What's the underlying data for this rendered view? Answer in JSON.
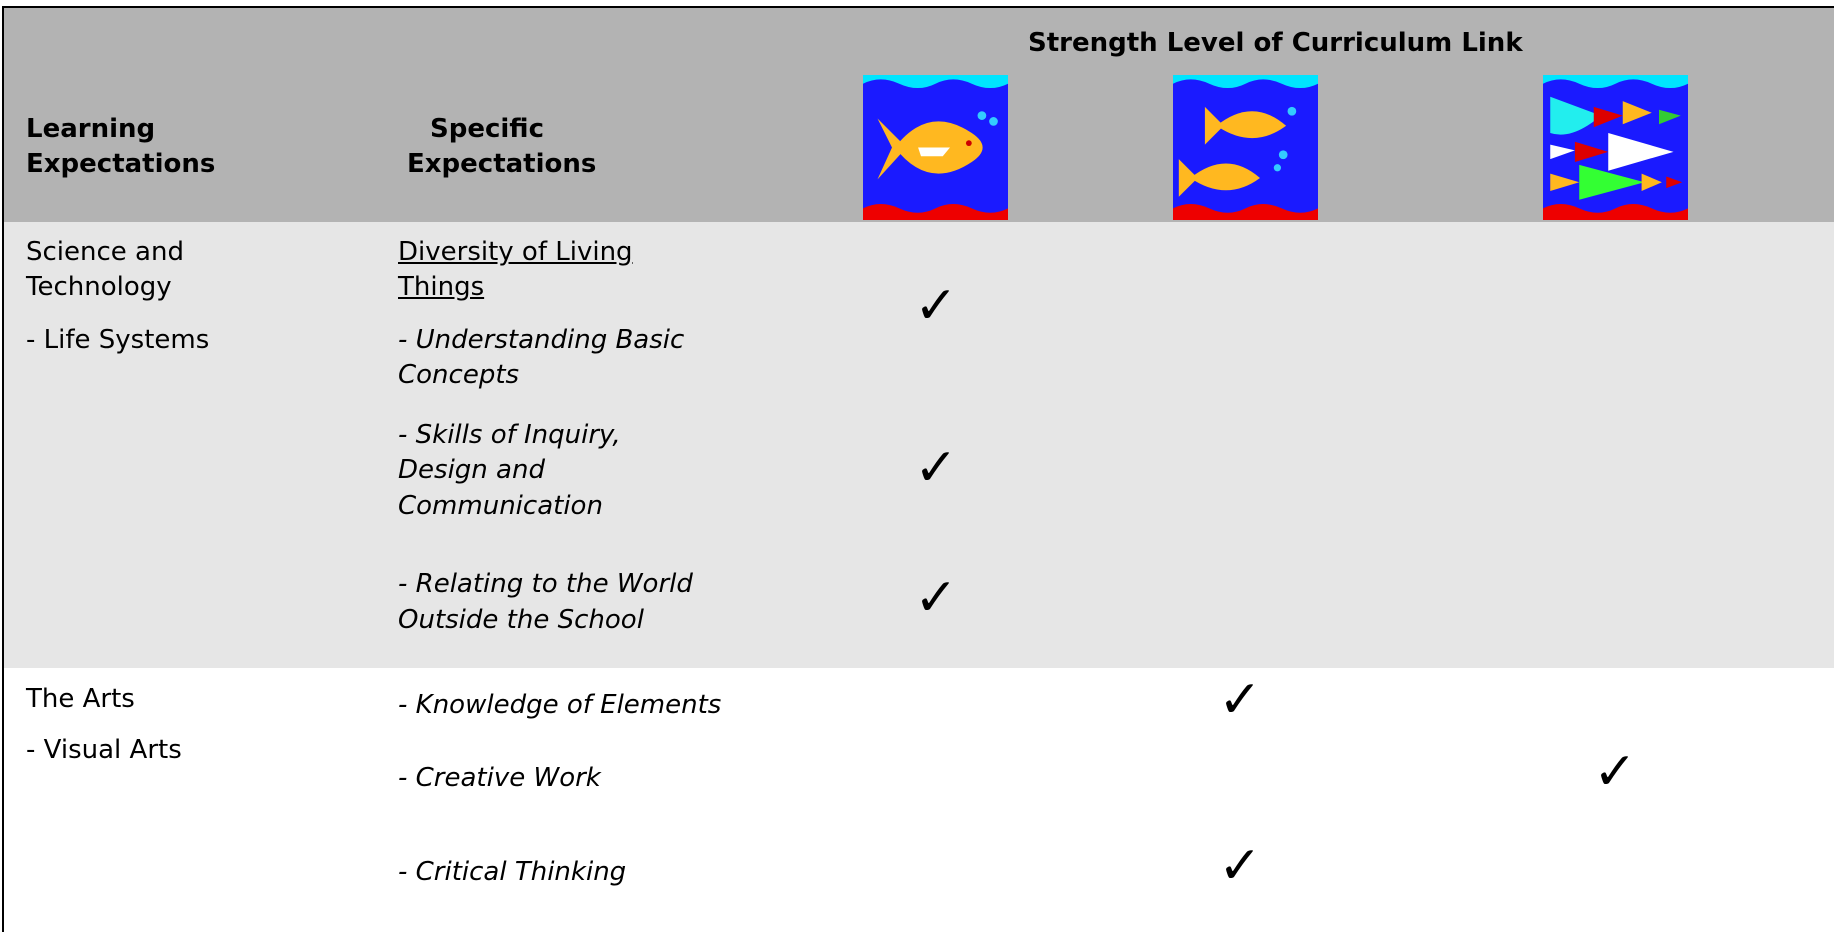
{
  "header": {
    "title": "Strength Level of Curriculum Link",
    "learning": [
      "Learning",
      "Expectations"
    ],
    "specific": [
      "Specific",
      "Expectations"
    ]
  },
  "rows": [
    {
      "learning": [
        "Science and",
        "Technology"
      ],
      "strand": "- Life Systems",
      "topic": [
        "Diversity of Living",
        "Things"
      ],
      "expectations": [
        {
          "lines": [
            "- Understanding Basic",
            "Concepts"
          ],
          "level_1": "✓"
        },
        {
          "lines": [
            "- Skills of Inquiry,",
            "Design and",
            "Communication"
          ],
          "level_1": "✓"
        },
        {
          "lines": [
            "- Relating to the World",
            "Outside the School"
          ],
          "level_1": "✓"
        }
      ]
    },
    {
      "learning": [
        "The Arts"
      ],
      "strand": "- Visual Arts",
      "expectations": [
        {
          "lines": [
            "- Knowledge of Elements"
          ],
          "level_2": "✓"
        },
        {
          "lines": [
            "- Creative Work"
          ],
          "level_3": "✓"
        },
        {
          "lines": [
            "- Critical Thinking"
          ],
          "level_2": "✓"
        }
      ]
    }
  ]
}
